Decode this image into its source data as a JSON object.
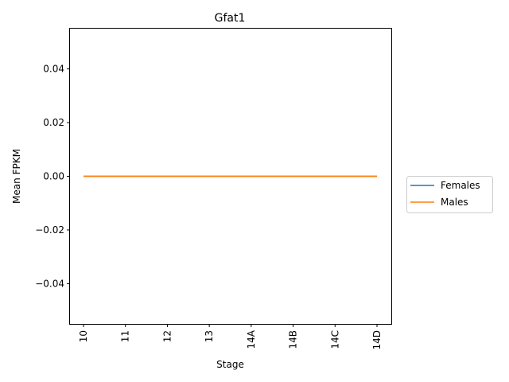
{
  "chart_data": {
    "type": "line",
    "title": "Gfat1",
    "xlabel": "Stage",
    "ylabel": "Mean FPKM",
    "categories": [
      "10",
      "11",
      "12",
      "13",
      "14A",
      "14B",
      "14C",
      "14D"
    ],
    "series": [
      {
        "name": "Females",
        "color": "#1f77b4",
        "values": [
          0,
          0,
          0,
          0,
          0,
          0,
          0,
          0
        ]
      },
      {
        "name": "Males",
        "color": "#ff7f0e",
        "values": [
          0,
          0,
          0,
          0,
          0,
          0,
          0,
          0
        ]
      }
    ],
    "ylim": [
      -0.055,
      0.055
    ],
    "yticks": [
      -0.04,
      -0.02,
      0.0,
      0.02,
      0.04
    ],
    "ytick_labels": [
      "−0.04",
      "−0.02",
      "0.00",
      "0.02",
      "0.04"
    ],
    "grid": false,
    "legend_position": "right-outside"
  }
}
